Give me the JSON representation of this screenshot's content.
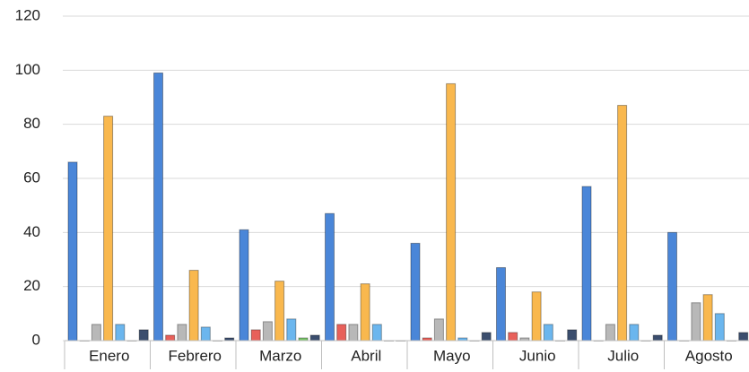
{
  "chart_data": {
    "type": "bar",
    "categories": [
      "Enero",
      "Febrero",
      "Marzo",
      "Abril",
      "Mayo",
      "Junio",
      "Julio",
      "Agosto"
    ],
    "series": [
      {
        "color": "#4a86d8",
        "values": [
          66,
          99,
          41,
          47,
          36,
          27,
          57,
          40
        ]
      },
      {
        "color": "#e8605a",
        "values": [
          0,
          2,
          4,
          6,
          1,
          3,
          0,
          0
        ]
      },
      {
        "color": "#b8b8b8",
        "values": [
          6,
          6,
          7,
          6,
          8,
          1,
          6,
          14
        ]
      },
      {
        "color": "#f9b84e",
        "values": [
          83,
          26,
          22,
          21,
          95,
          18,
          87,
          17
        ]
      },
      {
        "color": "#6bb6ee",
        "values": [
          6,
          5,
          8,
          6,
          1,
          6,
          6,
          10
        ]
      },
      {
        "color": "#79c36a",
        "values": [
          0,
          0,
          1,
          0,
          0,
          0,
          0,
          0
        ]
      },
      {
        "color": "#3b4e6e",
        "values": [
          4,
          1,
          2,
          0,
          3,
          4,
          2,
          3
        ]
      }
    ],
    "ylim": [
      0,
      120
    ],
    "yticks": [
      0,
      20,
      40,
      60,
      80,
      100,
      120
    ],
    "grid": true
  }
}
